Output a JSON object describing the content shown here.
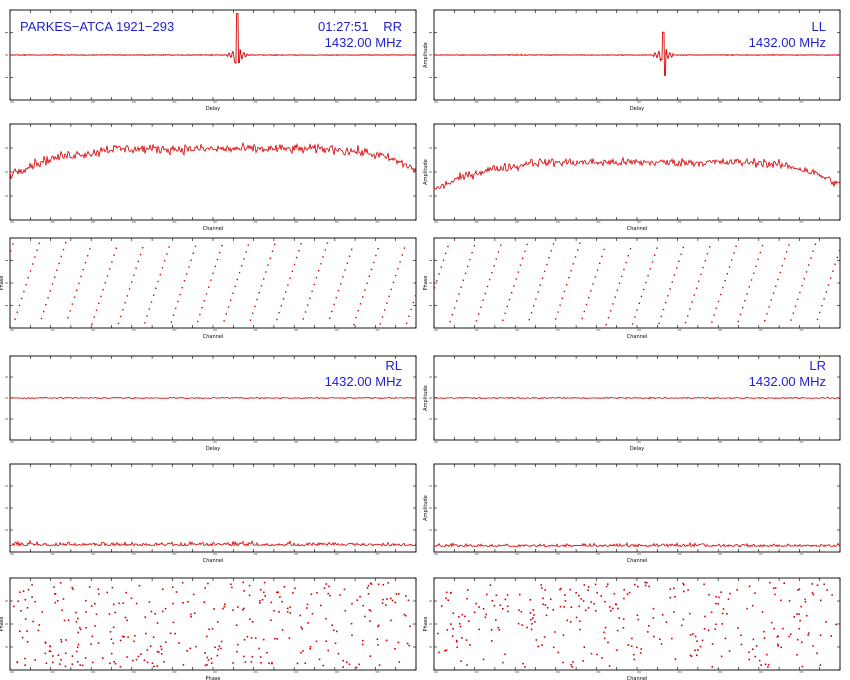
{
  "colors": {
    "trace": "#d40000",
    "frame": "#000000",
    "label": "#1f1fd0",
    "background": "#ffffff"
  },
  "header": {
    "source": "PARKES−ATCA 1921−293",
    "time": "01:27:51"
  },
  "chart_data": [
    {
      "type": "line",
      "panel": "RR-delay",
      "pol": "RR",
      "freq": "1432.00 MHz",
      "xlabel": "Delay",
      "ylabel": "",
      "shape": "delay-spike",
      "spike_at": 0.56,
      "spike_height": 1.0,
      "spike_depth": -0.28,
      "noise": 0.004,
      "baseline": 0.5
    },
    {
      "type": "line",
      "panel": "LL-delay",
      "pol": "LL",
      "freq": "1432.00 MHz",
      "xlabel": "Delay",
      "ylabel": "Amplitude",
      "shape": "delay-spike",
      "spike_at": 0.565,
      "spike_height": 0.55,
      "spike_depth": -0.75,
      "noise": 0.004,
      "baseline": 0.5
    },
    {
      "type": "line",
      "panel": "RR-amp",
      "xlabel": "Channel",
      "ylabel": "",
      "shape": "bandpass",
      "level": 0.74,
      "edge_low": 0.22,
      "edge_high": 0.2,
      "noise": 0.05
    },
    {
      "type": "line",
      "panel": "LL-amp",
      "xlabel": "Channel",
      "ylabel": "Amplitude",
      "shape": "bandpass",
      "level": 0.6,
      "edge_low": 0.25,
      "edge_high": 0.22,
      "noise": 0.045
    },
    {
      "type": "scatter",
      "panel": "RR-phase",
      "xlabel": "Channel",
      "ylabel": "Phase",
      "shape": "wrapped-phase",
      "wraps": 15.5,
      "offset": 0.1
    },
    {
      "type": "scatter",
      "panel": "LL-phase",
      "xlabel": "Channel",
      "ylabel": "Phase",
      "shape": "wrapped-phase",
      "wraps": 15.5,
      "offset": 0.55
    },
    {
      "type": "line",
      "panel": "RL-delay",
      "pol": "RL",
      "freq": "1432.00 MHz",
      "xlabel": "Delay",
      "ylabel": "",
      "shape": "flat",
      "baseline": 0.5,
      "noise": 0.008
    },
    {
      "type": "line",
      "panel": "LR-delay",
      "pol": "LR",
      "freq": "1432.00 MHz",
      "xlabel": "Delay",
      "ylabel": "Amplitude",
      "shape": "flat",
      "baseline": 0.5,
      "noise": 0.008
    },
    {
      "type": "line",
      "panel": "RL-amp",
      "xlabel": "Channel",
      "ylabel": "",
      "shape": "noise-floor",
      "level": 0.07,
      "noise": 0.04
    },
    {
      "type": "line",
      "panel": "LR-amp",
      "xlabel": "Channel",
      "ylabel": "Amplitude",
      "shape": "noise-floor",
      "level": 0.06,
      "noise": 0.035
    },
    {
      "type": "scatter",
      "panel": "RL-phase",
      "xlabel": "Phase",
      "ylabel": "Phase",
      "shape": "random-phase",
      "points": 330
    },
    {
      "type": "scatter",
      "panel": "LR-phase",
      "xlabel": "Channel",
      "ylabel": "Phase",
      "shape": "random-phase",
      "points": 300
    }
  ]
}
